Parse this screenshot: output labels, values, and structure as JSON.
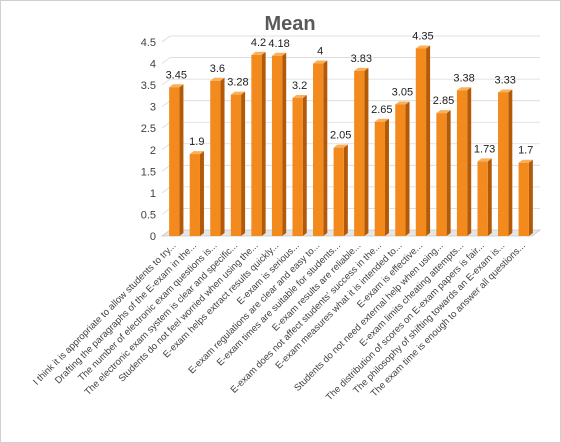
{
  "chart_data": {
    "type": "bar",
    "title": "Mean",
    "xlabel": "",
    "ylabel": "",
    "ylim": [
      0,
      4.5
    ],
    "yticks": [
      "0",
      "0.5",
      "1",
      "1.5",
      "2",
      "2.5",
      "3",
      "3.5",
      "4",
      "4.5"
    ],
    "grid": true,
    "legend": "none",
    "bar_color": "#F28A1E",
    "bar_dark": "#B35A08",
    "bar_light": "#F9B05A",
    "categories": [
      "I think it is appropriate to allow students to try...",
      "Drafting the paragraphs of the E-exam in the...",
      "The number of electronic exam questions is...",
      "The electronic exam system is clear and specific...",
      "Students do not feel worried when using the...",
      "E-exam helps extract results quickly...",
      "E-exam is serious...",
      "E-exam regulations are clear and easy to...",
      "E-exam times are suitable for students...",
      "E-exam results are reliable...",
      "E-exam does not affect students' success in the...",
      "E-exam measures what it is intended to...",
      "E-exam is effective...",
      "Students do not need external help when using...",
      "E-exam limits cheating attempts...",
      "The distribution of scores on E-exam papers is fair...",
      "The philosophy of shifting towards an E-exam is...",
      "The exam time is enough to answer all questions..."
    ],
    "values": [
      3.45,
      1.9,
      3.6,
      3.28,
      4.2,
      4.18,
      3.2,
      4,
      2.05,
      3.83,
      2.65,
      3.05,
      4.35,
      2.85,
      3.38,
      1.73,
      3.33,
      1.7
    ],
    "value_labels": [
      "3.45",
      "1.9",
      "3.6",
      "3.28",
      "4.2",
      "4.18",
      "3.2",
      "4",
      "2.05",
      "3.83",
      "2.65",
      "3.05",
      "4.35",
      "2.85",
      "3.38",
      "1.73",
      "3.33",
      "1.7"
    ]
  }
}
